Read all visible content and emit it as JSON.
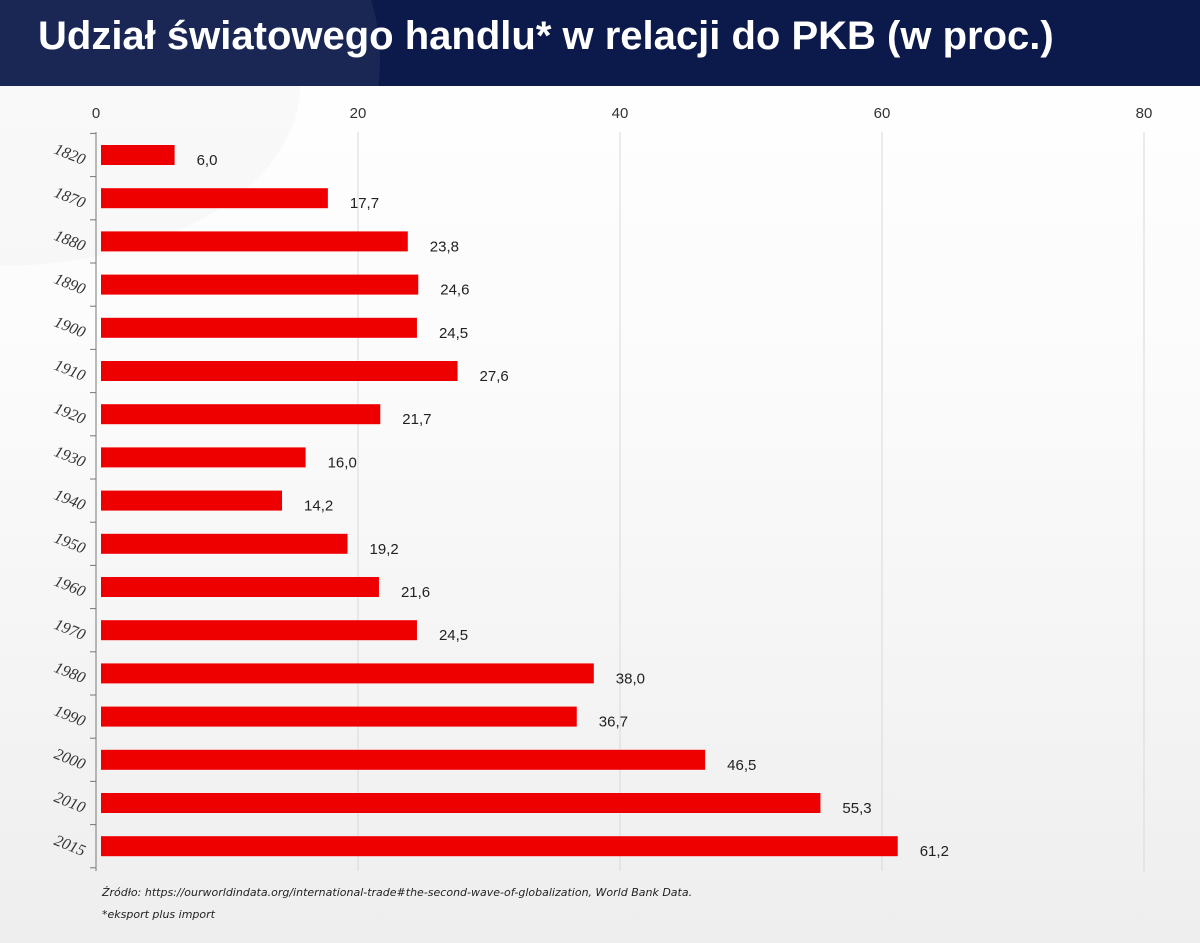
{
  "header": {
    "title": "Udział światowego handlu* w relacji do PKB (w proc.)",
    "background_color": "#0c1a4b"
  },
  "chart_data": {
    "type": "bar",
    "orientation": "horizontal",
    "categories": [
      "1820",
      "1870",
      "1880",
      "1890",
      "1900",
      "1910",
      "1920",
      "1930",
      "1940",
      "1950",
      "1960",
      "1970",
      "1980",
      "1990",
      "2000",
      "2010",
      "2015"
    ],
    "values": [
      6.0,
      17.7,
      23.8,
      24.6,
      24.5,
      27.6,
      21.7,
      16.0,
      14.2,
      19.2,
      21.6,
      24.5,
      38.0,
      36.7,
      46.5,
      55.3,
      61.2
    ],
    "value_labels": [
      "6,0",
      "17,7",
      "23,8",
      "24,6",
      "24,5",
      "27,6",
      "21,7",
      "16,0",
      "14,2",
      "19,2",
      "21,6",
      "24,5",
      "38,0",
      "36,7",
      "46,5",
      "55,3",
      "61,2"
    ],
    "x_ticks": [
      0,
      20,
      40,
      60,
      80
    ],
    "xlim": [
      0,
      80
    ],
    "x_axis_position": "top",
    "bar_color": "#ee0000",
    "grid": true
  },
  "footnotes": {
    "source": "Źródło: https://ourworldindata.org/international-trade#the-second-wave-of-globalization, World Bank Data.",
    "note": "*eksport plus import"
  }
}
